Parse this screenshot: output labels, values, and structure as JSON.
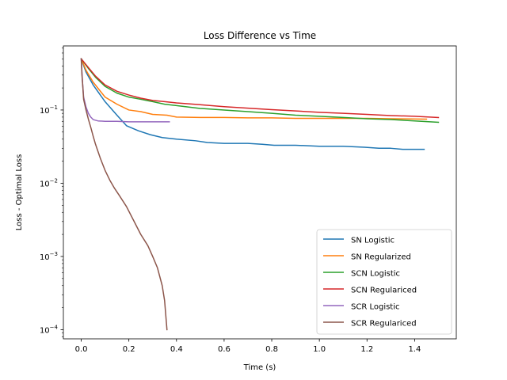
{
  "chart_data": {
    "type": "line",
    "title": "Loss Difference vs Time",
    "xlabel": "Time (s)",
    "ylabel": "Loss - Optimal Loss",
    "yscale": "log",
    "xlim": [
      -0.075,
      1.575
    ],
    "ylim": [
      7.5e-05,
      0.75
    ],
    "x_ticks": [
      0.0,
      0.2,
      0.4,
      0.6,
      0.8,
      1.0,
      1.2,
      1.4
    ],
    "x_tick_labels": [
      "0.0",
      "0.2",
      "0.4",
      "0.6",
      "0.8",
      "1.0",
      "1.2",
      "1.4"
    ],
    "y_ticks": [
      0.0001,
      0.001,
      0.01,
      0.1
    ],
    "y_tick_labels": [
      {
        "base": "10",
        "exp": "−4"
      },
      {
        "base": "10",
        "exp": "−3"
      },
      {
        "base": "10",
        "exp": "−2"
      },
      {
        "base": "10",
        "exp": "−1"
      }
    ],
    "grid": false,
    "legend_position": "lower-right",
    "series": [
      {
        "name": "SN Logistic",
        "color": "#1f77b4",
        "x": [
          0.0,
          0.02,
          0.05,
          0.1,
          0.15,
          0.19,
          0.24,
          0.29,
          0.34,
          0.4,
          0.48,
          0.53,
          0.6,
          0.7,
          0.76,
          0.81,
          0.9,
          1.0,
          1.1,
          1.19,
          1.25,
          1.3,
          1.35,
          1.44
        ],
        "y": [
          0.5,
          0.33,
          0.22,
          0.13,
          0.085,
          0.061,
          0.052,
          0.046,
          0.042,
          0.04,
          0.038,
          0.036,
          0.035,
          0.035,
          0.034,
          0.033,
          0.033,
          0.032,
          0.032,
          0.031,
          0.03,
          0.03,
          0.029,
          0.029
        ]
      },
      {
        "name": "SN Regularized",
        "color": "#ff7f0e",
        "x": [
          0.0,
          0.02,
          0.05,
          0.1,
          0.15,
          0.2,
          0.25,
          0.3,
          0.36,
          0.4,
          0.5,
          0.6,
          0.7,
          0.8,
          0.9,
          1.0,
          1.1,
          1.2,
          1.3,
          1.45
        ],
        "y": [
          0.5,
          0.35,
          0.24,
          0.15,
          0.12,
          0.1,
          0.095,
          0.087,
          0.085,
          0.08,
          0.079,
          0.079,
          0.078,
          0.078,
          0.077,
          0.077,
          0.077,
          0.077,
          0.076,
          0.075
        ]
      },
      {
        "name": "SCN Logistic",
        "color": "#2ca02c",
        "x": [
          0.0,
          0.03,
          0.06,
          0.1,
          0.15,
          0.2,
          0.25,
          0.3,
          0.35,
          0.4,
          0.5,
          0.6,
          0.7,
          0.8,
          0.9,
          1.0,
          1.1,
          1.2,
          1.3,
          1.4,
          1.5
        ],
        "y": [
          0.5,
          0.37,
          0.28,
          0.21,
          0.17,
          0.15,
          0.14,
          0.13,
          0.12,
          0.115,
          0.105,
          0.1,
          0.095,
          0.09,
          0.085,
          0.082,
          0.079,
          0.076,
          0.074,
          0.071,
          0.068
        ]
      },
      {
        "name": "SCN Regulariced",
        "color": "#d62728",
        "x": [
          0.0,
          0.03,
          0.06,
          0.1,
          0.15,
          0.2,
          0.25,
          0.3,
          0.35,
          0.4,
          0.5,
          0.6,
          0.7,
          0.8,
          0.9,
          1.0,
          1.1,
          1.2,
          1.3,
          1.4,
          1.5
        ],
        "y": [
          0.5,
          0.38,
          0.29,
          0.22,
          0.18,
          0.16,
          0.145,
          0.135,
          0.13,
          0.125,
          0.118,
          0.111,
          0.106,
          0.101,
          0.097,
          0.093,
          0.09,
          0.087,
          0.084,
          0.082,
          0.079
        ]
      },
      {
        "name": "SCR Logistic",
        "color": "#9467bd",
        "x": [
          0.0,
          0.005,
          0.01,
          0.02,
          0.03,
          0.04,
          0.05,
          0.07,
          0.1,
          0.15,
          0.2,
          0.25,
          0.3,
          0.37
        ],
        "y": [
          0.5,
          0.25,
          0.15,
          0.11,
          0.09,
          0.08,
          0.074,
          0.071,
          0.07,
          0.07,
          0.069,
          0.069,
          0.069,
          0.069
        ]
      },
      {
        "name": "SCR Regulariced",
        "color": "#8c564b",
        "x": [
          0.0,
          0.003,
          0.007,
          0.01,
          0.02,
          0.03,
          0.04,
          0.05,
          0.06,
          0.08,
          0.1,
          0.12,
          0.14,
          0.16,
          0.19,
          0.22,
          0.25,
          0.28,
          0.3,
          0.32,
          0.34,
          0.35,
          0.36
        ],
        "y": [
          0.5,
          0.3,
          0.2,
          0.14,
          0.1,
          0.075,
          0.058,
          0.044,
          0.034,
          0.022,
          0.015,
          0.011,
          0.0085,
          0.0068,
          0.0048,
          0.0031,
          0.002,
          0.0014,
          0.001,
          0.0007,
          0.0004,
          0.00025,
          0.0001
        ]
      }
    ]
  }
}
